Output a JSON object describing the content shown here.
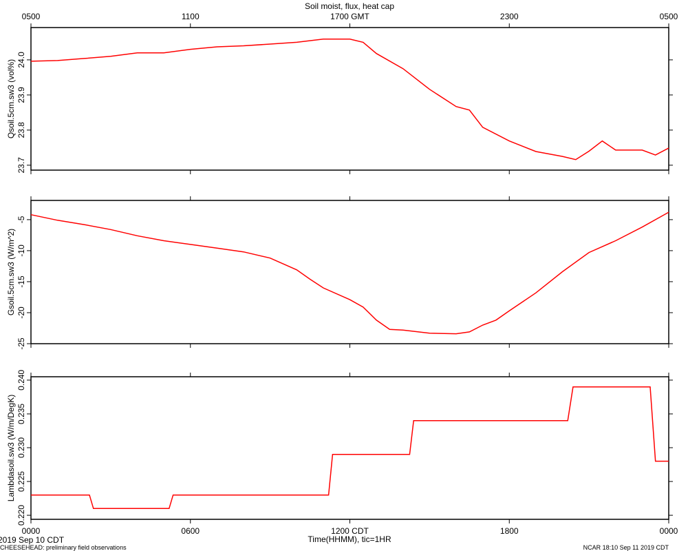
{
  "chart_data": [
    {
      "type": "line",
      "title": "Soil moist, flux, heat cap",
      "ylabel": "Qsoil.5cm.sw3 (vol%)",
      "color": "#ff0000",
      "x": [
        0,
        1,
        2,
        3,
        4,
        5,
        6,
        7,
        8,
        9,
        10,
        11,
        12,
        12.5,
        13,
        14,
        15,
        16,
        16.5,
        17,
        18,
        19,
        20,
        20.5,
        21,
        21.5,
        22,
        23,
        23.5,
        24
      ],
      "values": [
        23.996,
        23.998,
        24.004,
        24.01,
        24.02,
        24.02,
        24.03,
        24.037,
        24.04,
        24.045,
        24.05,
        24.059,
        24.059,
        24.05,
        24.018,
        23.975,
        23.916,
        23.867,
        23.857,
        23.808,
        23.769,
        23.739,
        23.725,
        23.716,
        23.74,
        23.769,
        23.743,
        23.743,
        23.729,
        23.749
      ],
      "xlim": [
        0,
        24
      ],
      "ylim": [
        23.686,
        24.092
      ],
      "yticks": [
        {
          "value": 24.0,
          "label": "24.0"
        },
        23.9,
        23.8,
        23.7
      ],
      "x2ticks": [
        {
          "value": 0,
          "label": "0500"
        },
        {
          "value": 6,
          "label": "1100"
        },
        {
          "value": 12,
          "label": "1700 GMT"
        },
        {
          "value": 18,
          "label": "2300"
        },
        {
          "value": 24,
          "label": "0500"
        }
      ]
    },
    {
      "type": "line",
      "ylabel": "Gsoil.5cm.sw3 (W/m^2)",
      "color": "#ff0000",
      "x": [
        0,
        1,
        2,
        3,
        4,
        5,
        6,
        7,
        8,
        9,
        10,
        10.5,
        11,
        12,
        12.5,
        13,
        13.5,
        14,
        15,
        16,
        16.5,
        17,
        17.5,
        18,
        19,
        20,
        21,
        22,
        23,
        24
      ],
      "values": [
        -4.2,
        -5.1,
        -5.8,
        -6.6,
        -7.6,
        -8.4,
        -9.0,
        -9.6,
        -10.2,
        -11.2,
        -13.1,
        -14.6,
        -16.0,
        -17.9,
        -19.1,
        -21.2,
        -22.7,
        -22.8,
        -23.3,
        -23.4,
        -23.1,
        -22.0,
        -21.2,
        -19.7,
        -16.8,
        -13.4,
        -10.3,
        -8.4,
        -6.2,
        -3.8
      ],
      "xlim": [
        0,
        24
      ],
      "ylim": [
        -25,
        -1.9
      ],
      "yticks": [
        -5,
        -10,
        -15,
        -20,
        -25
      ]
    },
    {
      "type": "line",
      "ylabel": "Lambdasoil.sw3 (W/m/DegK)",
      "color": "#ff0000",
      "x": [
        0,
        2.2,
        2.35,
        5.2,
        5.35,
        11.2,
        11.35,
        14.25,
        14.4,
        20.2,
        20.4,
        23.3,
        23.5,
        24
      ],
      "values": [
        0.223,
        0.223,
        0.221,
        0.221,
        0.223,
        0.223,
        0.229,
        0.229,
        0.234,
        0.234,
        0.239,
        0.239,
        0.228,
        0.228
      ],
      "xlim": [
        0,
        24
      ],
      "ylim": [
        0.2194,
        0.2405
      ],
      "yticks": [
        {
          "value": 0.24,
          "label": "0.240"
        },
        0.235,
        {
          "value": 0.23,
          "label": "0.230"
        },
        0.225,
        {
          "value": 0.22,
          "label": "0.220"
        }
      ],
      "xlabel": "Time(HHMM), tic=1HR",
      "xticks": [
        {
          "value": 0,
          "label": "0000"
        },
        {
          "value": 6,
          "label": "0600"
        },
        {
          "value": 12,
          "label": "1200 CDT"
        },
        {
          "value": 18,
          "label": "1800"
        },
        {
          "value": 24,
          "label": "0000"
        }
      ]
    }
  ],
  "footer": {
    "date": "2019 Sep 10 CDT",
    "note": "CHEESEHEAD: preliminary field observations",
    "credit": "NCAR 18:10 Sep 11 2019 CDT"
  }
}
